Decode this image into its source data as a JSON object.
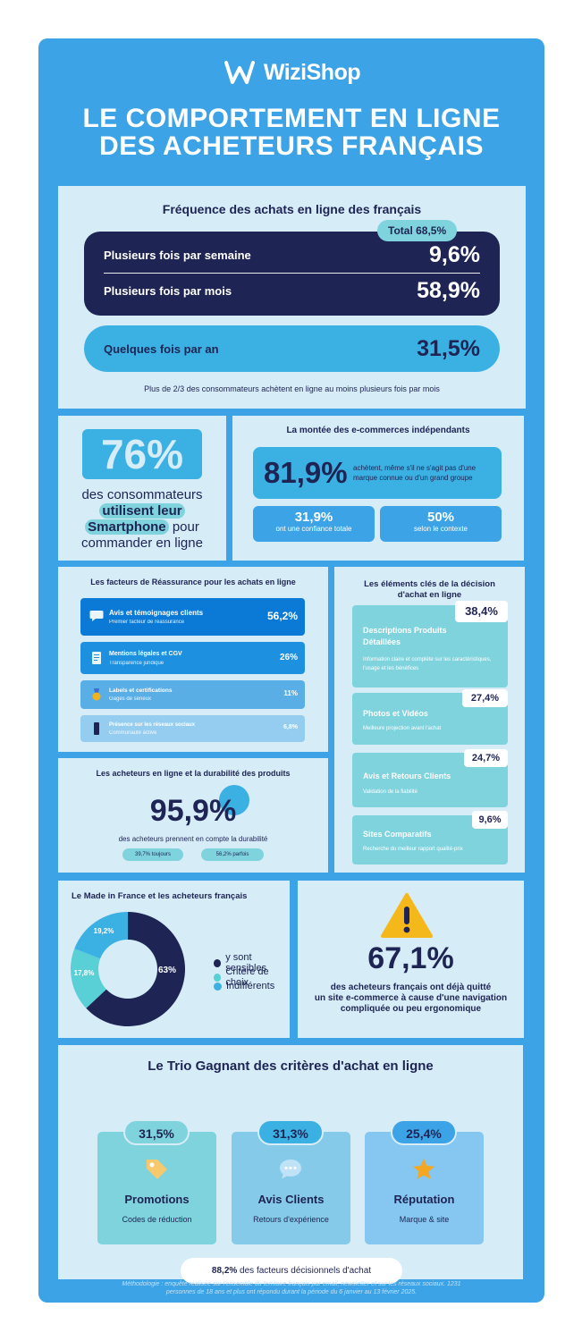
{
  "header": {
    "logo_text": "WiziShop",
    "title_line1": "LE COMPORTEMENT EN LIGNE",
    "title_line2": "DES ACHETEURS FRANÇAIS"
  },
  "frequency": {
    "title": "Fréquence des achats en ligne des français",
    "total_badge": "Total 68,5%",
    "rows": [
      {
        "label": "Plusieurs fois par semaine",
        "value": "9,6%"
      },
      {
        "label": "Plusieurs fois par mois",
        "value": "58,9%"
      }
    ],
    "yearly": {
      "label": "Quelques fois par an",
      "value": "31,5%"
    },
    "note": "Plus de 2/3 des consommateurs achètent en ligne au moins plusieurs fois par mois"
  },
  "smartphone": {
    "value": "76%",
    "line1": "des consommateurs",
    "highlight1": "utilisent leur",
    "highlight2": "Smartphone",
    "after": "pour",
    "line4": "commander en ligne"
  },
  "independents": {
    "title": "La montée des e-commerces indépendants",
    "big_value": "81,9%",
    "big_text": "achètent, même s'il ne s'agit pas d'une marque connue ou d'un grand groupe",
    "boxes": [
      {
        "value": "31,9%",
        "text": "ont une confiance totale"
      },
      {
        "value": "50%",
        "text": "selon le contexte"
      }
    ]
  },
  "reassurance": {
    "title": "Les facteurs de Réassurance pour les achats en ligne",
    "items": [
      {
        "label": "Avis et témoignages clients",
        "sub": "Premier facteur de réassurance",
        "value": "56,2%",
        "color": "#0a7ad6",
        "icon": "chat-bubble-icon"
      },
      {
        "label": "Mentions légales et CGV",
        "sub": "Transparence juridique",
        "value": "26%",
        "color": "#1e90e0",
        "icon": "document-icon"
      },
      {
        "label": "Labels et certifications",
        "sub": "Gages de sérieux",
        "value": "11%",
        "color": "#5aaee6",
        "icon": "medal-icon"
      },
      {
        "label": "Présence sur les réseaux sociaux",
        "sub": "Communauté active",
        "value": "6,8%",
        "color": "#94cdef",
        "icon": "phone-icon"
      }
    ]
  },
  "durability": {
    "title": "Les acheteurs en ligne et la durabilité des produits",
    "value": "95,9%",
    "text": "des acheteurs prennent en compte la durabilité",
    "pills": [
      "39,7% toujours",
      "56,2% parfois"
    ]
  },
  "decision": {
    "title_line1": "Les éléments clés de la décision",
    "title_line2": "d'achat en ligne",
    "items": [
      {
        "name_line1": "Descriptions Produits",
        "name_line2": "Détaillées",
        "desc": "Information claire et complète sur les caractéristiques, l'usage et les bénéfices",
        "value": "38,4%"
      },
      {
        "name_line1": "Photos et Vidéos",
        "name_line2": "",
        "desc": "Meilleure projection avant l'achat",
        "value": "27,4%"
      },
      {
        "name_line1": "Avis et Retours Clients",
        "name_line2": "",
        "desc": "Validation de la fiabilité",
        "value": "24,7%"
      },
      {
        "name_line1": "Sites Comparatifs",
        "name_line2": "",
        "desc": "Recherche du meilleur rapport qualité-prix",
        "value": "9,6%"
      }
    ]
  },
  "made_in_france": {
    "title": "Le Made in France et les acheteurs français",
    "slices": [
      {
        "label": "y sont sensibles",
        "value": 63,
        "display": "63%",
        "color": "#1e2453"
      },
      {
        "label": "Critère de choix",
        "value": 17.8,
        "display": "17,8%",
        "color": "#59cfd6"
      },
      {
        "label": "Indifférents",
        "value": 19.2,
        "display": "19,2%",
        "color": "#3bb1e3"
      }
    ]
  },
  "warning": {
    "icon": "warning-icon",
    "value": "67,1%",
    "line1": "des acheteurs français ont déjà quitté",
    "line2": "un site e-commerce à cause d'une navigation",
    "line3": "compliquée ou peu ergonomique"
  },
  "trio": {
    "title": "Le Trio Gagnant des critères d'achat en ligne",
    "items": [
      {
        "value": "31,5%",
        "name": "Promotions",
        "desc": "Codes de réduction",
        "icon": "tag-icon",
        "card_color": "#7fd3dd",
        "badge_color": "#7fd3dd"
      },
      {
        "value": "31,3%",
        "name": "Avis Clients",
        "desc": "Retours d'expérience",
        "icon": "chat-bubble-icon",
        "card_color": "#85cbe9",
        "badge_color": "#3bb1e3"
      },
      {
        "value": "25,4%",
        "name": "Réputation",
        "desc": "Marque & site",
        "icon": "star-icon",
        "card_color": "#85c7f0",
        "badge_color": "#3ca3e6"
      }
    ],
    "foot_bold": "88,2%",
    "foot_text": " des facteurs décisionnels d'achat"
  },
  "methodology": {
    "line1": "Méthodologie : enquête réalisée sur l'ensemble du territoire français par email, newsletter et sur les réseaux sociaux. 1231",
    "line2": "personnes de 18 ans et plus ont répondu durant la période du 6 janvier au 13 février 2025."
  }
}
